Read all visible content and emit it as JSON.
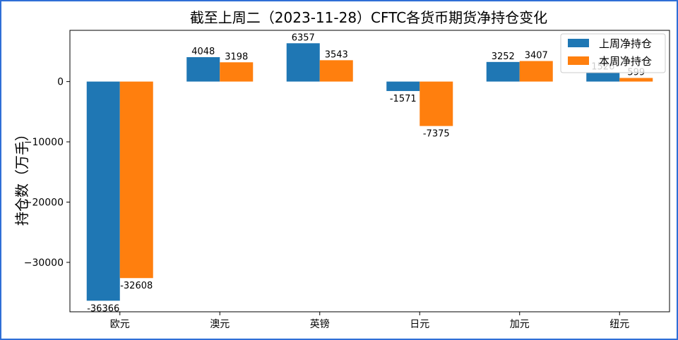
{
  "chart_data": {
    "type": "bar",
    "title": "截至上周二（2023-11-28）CFTC各货币期货净持仓变化",
    "xlabel": "",
    "ylabel": "持仓数（万手）",
    "categories": [
      "欧元",
      "澳元",
      "英镑",
      "日元",
      "加元",
      "纽元"
    ],
    "series": [
      {
        "name": "上周净持仓",
        "values": [
          -36366,
          4048,
          6357,
          -1571,
          3252,
          1526
        ],
        "color": "#1f77b4"
      },
      {
        "name": "本周净持仓",
        "values": [
          -32608,
          3198,
          3543,
          -7375,
          3407,
          599
        ],
        "color": "#ff7f0e"
      }
    ],
    "value_labels": [
      [
        "-36366",
        "4048",
        "6357",
        "-1571",
        "3252",
        "1526"
      ],
      [
        "-32608",
        "3198",
        "3543",
        "-7375",
        "3407",
        "599"
      ]
    ],
    "yticks": [
      0,
      -10000,
      -20000,
      -30000
    ],
    "ytick_labels": [
      "0",
      "−10000",
      "−20000",
      "−30000"
    ],
    "ylim": [
      -38200,
      8500
    ],
    "grid": false,
    "legend_position": "top-right"
  }
}
